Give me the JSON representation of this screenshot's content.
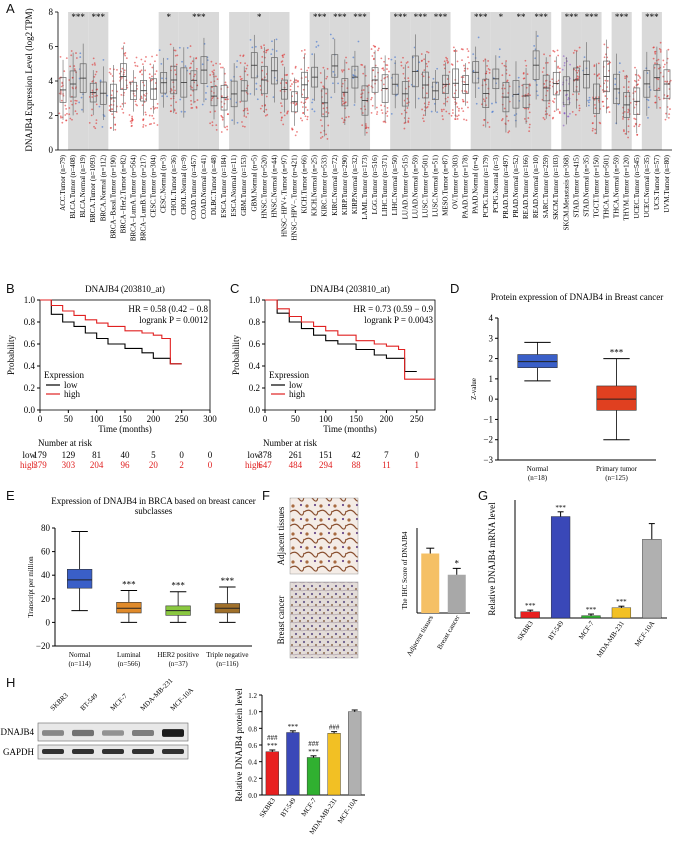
{
  "panel_labels": {
    "a": "A",
    "b": "B",
    "c": "C",
    "d": "D",
    "e": "E",
    "f": "F",
    "g": "G",
    "h": "H"
  },
  "colors": {
    "tumor": "#e03030",
    "normal": "#3a6fd0",
    "grey_bg": "#d9d9d9",
    "km_low": "#000000",
    "km_high": "#e02020"
  },
  "panel_a": {
    "ylabel": "DNAJB4 Expression Level (log2 TPM)",
    "yticks": [
      "0",
      "2",
      "4",
      "6",
      "8"
    ],
    "significance": [
      "***",
      "***",
      "*",
      "***",
      "*",
      "***",
      "***",
      "***",
      "***",
      "***",
      "***",
      "***",
      "*",
      "**",
      "***",
      "***",
      "***",
      "***",
      "***"
    ],
    "categories": [
      "ACC.Tumor (n=79)",
      "BLCA.Tumor (n=408)",
      "BLCA.Normal (n=19)",
      "BRCA.Tumor (n=1093)",
      "BRCA.Normal (n=112)",
      "BRCA−Basal.Tumor (n=190)",
      "BRCA−Her2.Tumor (n=82)",
      "BRCA−LumA.Tumor (n=564)",
      "BRCA−LumB.Tumor (n=217)",
      "CESC.Tumor (n=304)",
      "CESC.Normal (n=3)",
      "CHOL.Tumor (n=36)",
      "CHOL.Normal (n=9)",
      "COAD.Tumor (n=457)",
      "COAD.Normal (n=41)",
      "DLBC.Tumor (n=48)",
      "ESCA.Tumor (n=184)",
      "ESCA.Normal (n=11)",
      "GBM.Tumor (n=153)",
      "GBM.Normal (n=5)",
      "HNSC.Tumor (n=520)",
      "HNSC.Normal (n=44)",
      "HNSC−HPV+.Tumor (n=97)",
      "HNSC−HPV−.Tumor (n=421)",
      "KICH.Tumor (n=66)",
      "KICH.Normal (n=25)",
      "KIRC.Tumor (n=533)",
      "KIRC.Normal (n=72)",
      "KIRP.Tumor (n=290)",
      "KIRP.Normal (n=32)",
      "LAML.Tumor (n=173)",
      "LGG.Tumor (n=516)",
      "LIHC.Tumor (n=371)",
      "LIHC.Normal (n=50)",
      "LUAD.Tumor (n=515)",
      "LUAD.Normal (n=59)",
      "LUSC.Tumor (n=501)",
      "LUSC.Normal (n=51)",
      "MESO.Tumor (n=87)",
      "OV.Tumor (n=303)",
      "PAAD.Tumor (n=178)",
      "PAAD.Normal (n=4)",
      "PCPG.Tumor (n=179)",
      "PCPG.Normal (n=3)",
      "PRAD.Tumor (n=497)",
      "PRAD.Normal (n=52)",
      "READ.Tumor (n=166)",
      "READ.Normal (n=10)",
      "SARC.Tumor (n=259)",
      "SKCM.Tumor (n=103)",
      "SKCM.Metastasis (n=368)",
      "STAD.Tumor (n=415)",
      "STAD.Normal (n=35)",
      "TGCT.Tumor (n=150)",
      "THCA.Tumor (n=501)",
      "THCA.Normal (n=59)",
      "THYM.Tumor (n=120)",
      "UCEC.Tumor (n=545)",
      "UCEC.Normal (n=35)",
      "UCS.Tumor (n=57)",
      "UVM.Tumor (n=80)"
    ]
  },
  "chart_data": [
    {
      "type": "line",
      "panel": "B",
      "title": "DNAJB4 (203810_at)",
      "xlabel": "Time (months)",
      "ylabel": "Probability",
      "xlim": [
        0,
        300
      ],
      "ylim": [
        0,
        1.0
      ],
      "xticks": [
        "0",
        "50",
        "100",
        "150",
        "200",
        "250",
        "300"
      ],
      "yticks": [
        "0.0",
        "0.2",
        "0.4",
        "0.6",
        "0.8",
        "1.0"
      ],
      "annotation": [
        "HR = 0.58 (0.42 − 0.8",
        "logrank P = 0.0012"
      ],
      "legend_title": "Expression",
      "series": [
        {
          "name": "low",
          "x": [
            0,
            20,
            40,
            60,
            80,
            100,
            120,
            150,
            180,
            200,
            215,
            230,
            250
          ],
          "values": [
            1.0,
            0.87,
            0.8,
            0.76,
            0.7,
            0.65,
            0.6,
            0.56,
            0.52,
            0.47,
            0.47,
            0.42,
            0.42
          ]
        },
        {
          "name": "high",
          "x": [
            0,
            20,
            40,
            60,
            80,
            100,
            120,
            150,
            180,
            200,
            215,
            230,
            250
          ],
          "values": [
            1.0,
            0.95,
            0.9,
            0.86,
            0.82,
            0.79,
            0.76,
            0.72,
            0.7,
            0.68,
            0.65,
            0.42,
            0.42
          ]
        }
      ],
      "risk_header": "Number at risk",
      "risk_low": [
        "low",
        "179",
        "129",
        "81",
        "40",
        "5",
        "0",
        "0"
      ],
      "risk_high": [
        "high",
        "379",
        "303",
        "204",
        "96",
        "20",
        "2",
        "0"
      ]
    },
    {
      "type": "line",
      "panel": "C",
      "title": "DNAJB4 (203810_at)",
      "xlabel": "Time (months)",
      "ylabel": "Probability",
      "xlim": [
        0,
        280
      ],
      "ylim": [
        0,
        1.0
      ],
      "xticks": [
        "0",
        "50",
        "100",
        "150",
        "200",
        "250"
      ],
      "yticks": [
        "0.0",
        "0.2",
        "0.4",
        "0.6",
        "0.8",
        "1.0"
      ],
      "annotation": [
        "HR = 0.73 (0.59 − 0.9",
        "logrank P = 0.0043"
      ],
      "legend_title": "Expression",
      "series": [
        {
          "name": "low",
          "x": [
            0,
            20,
            40,
            60,
            80,
            100,
            120,
            150,
            180,
            200,
            230,
            250
          ],
          "values": [
            1.0,
            0.88,
            0.8,
            0.74,
            0.68,
            0.63,
            0.6,
            0.55,
            0.5,
            0.47,
            0.35,
            0.35
          ]
        },
        {
          "name": "high",
          "x": [
            0,
            20,
            40,
            60,
            80,
            100,
            120,
            150,
            180,
            200,
            220,
            230,
            280
          ],
          "values": [
            1.0,
            0.92,
            0.85,
            0.8,
            0.76,
            0.72,
            0.68,
            0.63,
            0.6,
            0.58,
            0.55,
            0.28,
            0.28
          ]
        }
      ],
      "risk_header": "Number at risk",
      "risk_low": [
        "low",
        "378",
        "261",
        "151",
        "42",
        "7",
        "0"
      ],
      "risk_high": [
        "high",
        "647",
        "484",
        "294",
        "88",
        "11",
        "1"
      ]
    },
    {
      "type": "box",
      "panel": "D",
      "title": "Protein expression of DNAJB4 in Breast cancer",
      "ylabel": "Z-value",
      "ylim": [
        -3,
        4
      ],
      "yticks": [
        "−3",
        "−2",
        "−1",
        "0",
        "1",
        "2",
        "3",
        "4"
      ],
      "categories": [
        "Normal",
        "Primary tumor"
      ],
      "counts": [
        "(n=18)",
        "(n=125)"
      ],
      "boxes": [
        {
          "name": "Normal",
          "min": 0.9,
          "q1": 1.55,
          "median": 1.85,
          "q3": 2.2,
          "max": 2.8,
          "color": "#3a5fc8"
        },
        {
          "name": "Primary tumor",
          "min": -2.0,
          "q1": -0.55,
          "median": 0.0,
          "q3": 0.65,
          "max": 2.0,
          "color": "#e04020"
        }
      ],
      "significance": "***"
    },
    {
      "type": "box",
      "panel": "E",
      "title": "Expression of DNAJB4 in BRCA based on breast cancer subclasses",
      "title_lines": [
        "Expression of DNAJB4 in BRCA based on breast cancer",
        "subclasses"
      ],
      "ylabel": "Transcript per million",
      "ylim": [
        -20,
        80
      ],
      "yticks": [
        "−20",
        "0",
        "20",
        "40",
        "60",
        "80"
      ],
      "categories": [
        "Normal",
        "Luminal",
        "HER2 positive",
        "Triple negative"
      ],
      "counts": [
        "(n=114)",
        "(n=566)",
        "(n=37)",
        "(n=116)"
      ],
      "boxes": [
        {
          "name": "Normal",
          "min": 10,
          "q1": 29,
          "median": 36,
          "q3": 45,
          "max": 77,
          "color": "#3a5fc8"
        },
        {
          "name": "Luminal",
          "min": 0,
          "q1": 8,
          "median": 12,
          "q3": 17,
          "max": 27,
          "color": "#e08a2a"
        },
        {
          "name": "HER2 positive",
          "min": 0,
          "q1": 6,
          "median": 10,
          "q3": 14,
          "max": 26,
          "color": "#8ac840"
        },
        {
          "name": "Triple negative",
          "min": 0,
          "q1": 8,
          "median": 12,
          "q3": 16,
          "max": 30,
          "color": "#a0702a"
        }
      ],
      "significance": [
        "",
        "***",
        "***",
        "***"
      ]
    },
    {
      "type": "bar",
      "panel": "F",
      "ylabel": "The IHC Score of DNAJB4",
      "ylim": [
        0,
        8
      ],
      "categories": [
        "Adjacent tissues",
        "Breast cancer"
      ],
      "values": [
        5.6,
        3.6
      ],
      "errors": [
        0.5,
        0.6
      ],
      "colors": [
        "#f5c065",
        "#a8a8a8"
      ],
      "significance": [
        "",
        "*"
      ],
      "image_labels": [
        "Adjacent tissues",
        "Breast cancer"
      ]
    },
    {
      "type": "bar",
      "panel": "G",
      "ylabel": "Relative DNAJB4 mRNA level",
      "ylim": [
        0,
        1.5
      ],
      "categories": [
        "SKBR3",
        "BT-549",
        "MCF-7",
        "MDA-MB-231",
        "MCF-10A"
      ],
      "values": [
        0.08,
        1.29,
        0.03,
        0.13,
        1.0
      ],
      "errors": [
        0.02,
        0.06,
        0.02,
        0.02,
        0.2
      ],
      "colors": [
        "#e82020",
        "#3a48b8",
        "#30b030",
        "#f2c024",
        "#b0b0b0"
      ],
      "significance": [
        "***",
        "***",
        "***",
        "***",
        ""
      ]
    },
    {
      "type": "bar",
      "panel": "H",
      "ylabel": "Relative DNAJB4 protein level",
      "ylim": [
        0,
        1.2
      ],
      "yticks": [
        "0.0",
        "0.2",
        "0.4",
        "0.6",
        "0.8",
        "1.0",
        "1.2"
      ],
      "categories": [
        "SKBR3",
        "BT-549",
        "MCF-7",
        "MDA-MB-231",
        "MCF-10A"
      ],
      "values": [
        0.52,
        0.75,
        0.45,
        0.74,
        1.0
      ],
      "errors": [
        0.02,
        0.02,
        0.02,
        0.02,
        0.02
      ],
      "colors": [
        "#e82020",
        "#3a48b8",
        "#30b030",
        "#f2c024",
        "#b0b0b0"
      ],
      "significance": [
        "***",
        "***",
        "***",
        "",
        ""
      ],
      "hash": [
        "###",
        "",
        "###",
        "###",
        ""
      ],
      "blot_lanes": [
        "SKBR3",
        "BT-549",
        "MCF-7",
        "MDA-MB-231",
        "MCF-10A"
      ],
      "blot_rows": [
        "DNAJB4",
        "GAPDH"
      ]
    }
  ]
}
